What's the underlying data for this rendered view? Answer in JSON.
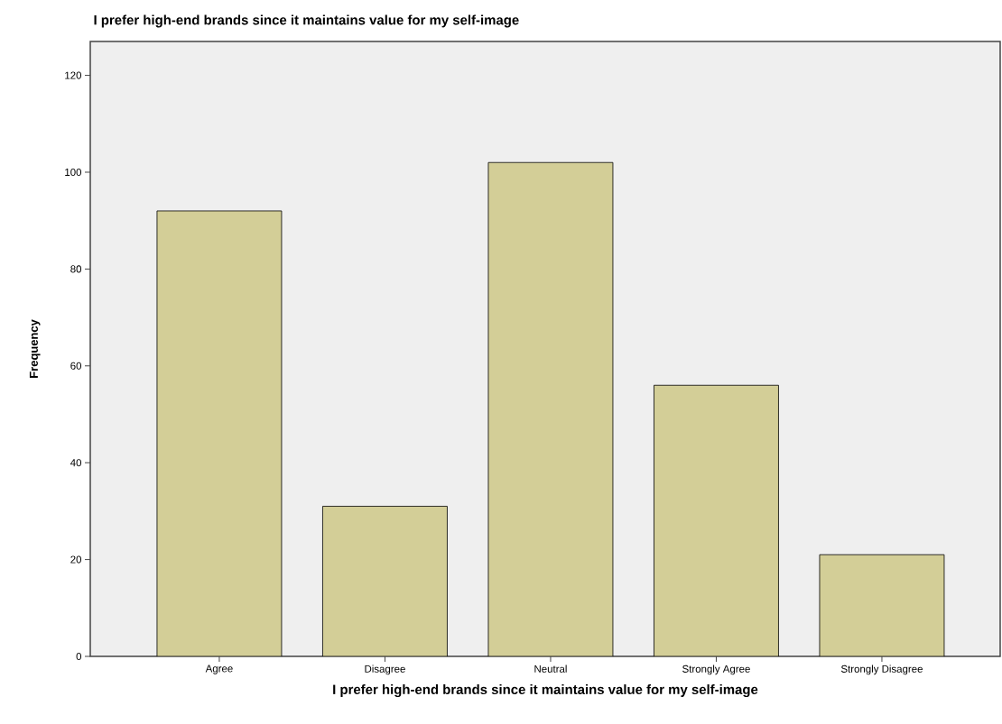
{
  "chart_data": {
    "type": "bar",
    "title": "I prefer high-end brands since it maintains value for my self-image",
    "xlabel": "I prefer high-end brands since it maintains value for my self-image",
    "ylabel": "Frequency",
    "categories": [
      "Agree",
      "Disagree",
      "Neutral",
      "Strongly Agree",
      "Strongly Disagree"
    ],
    "values": [
      92,
      31,
      102,
      56,
      21
    ],
    "color": "#d3ce97",
    "ylim": [
      0,
      127
    ],
    "yticks": [
      0,
      20,
      40,
      60,
      80,
      100,
      120
    ]
  }
}
